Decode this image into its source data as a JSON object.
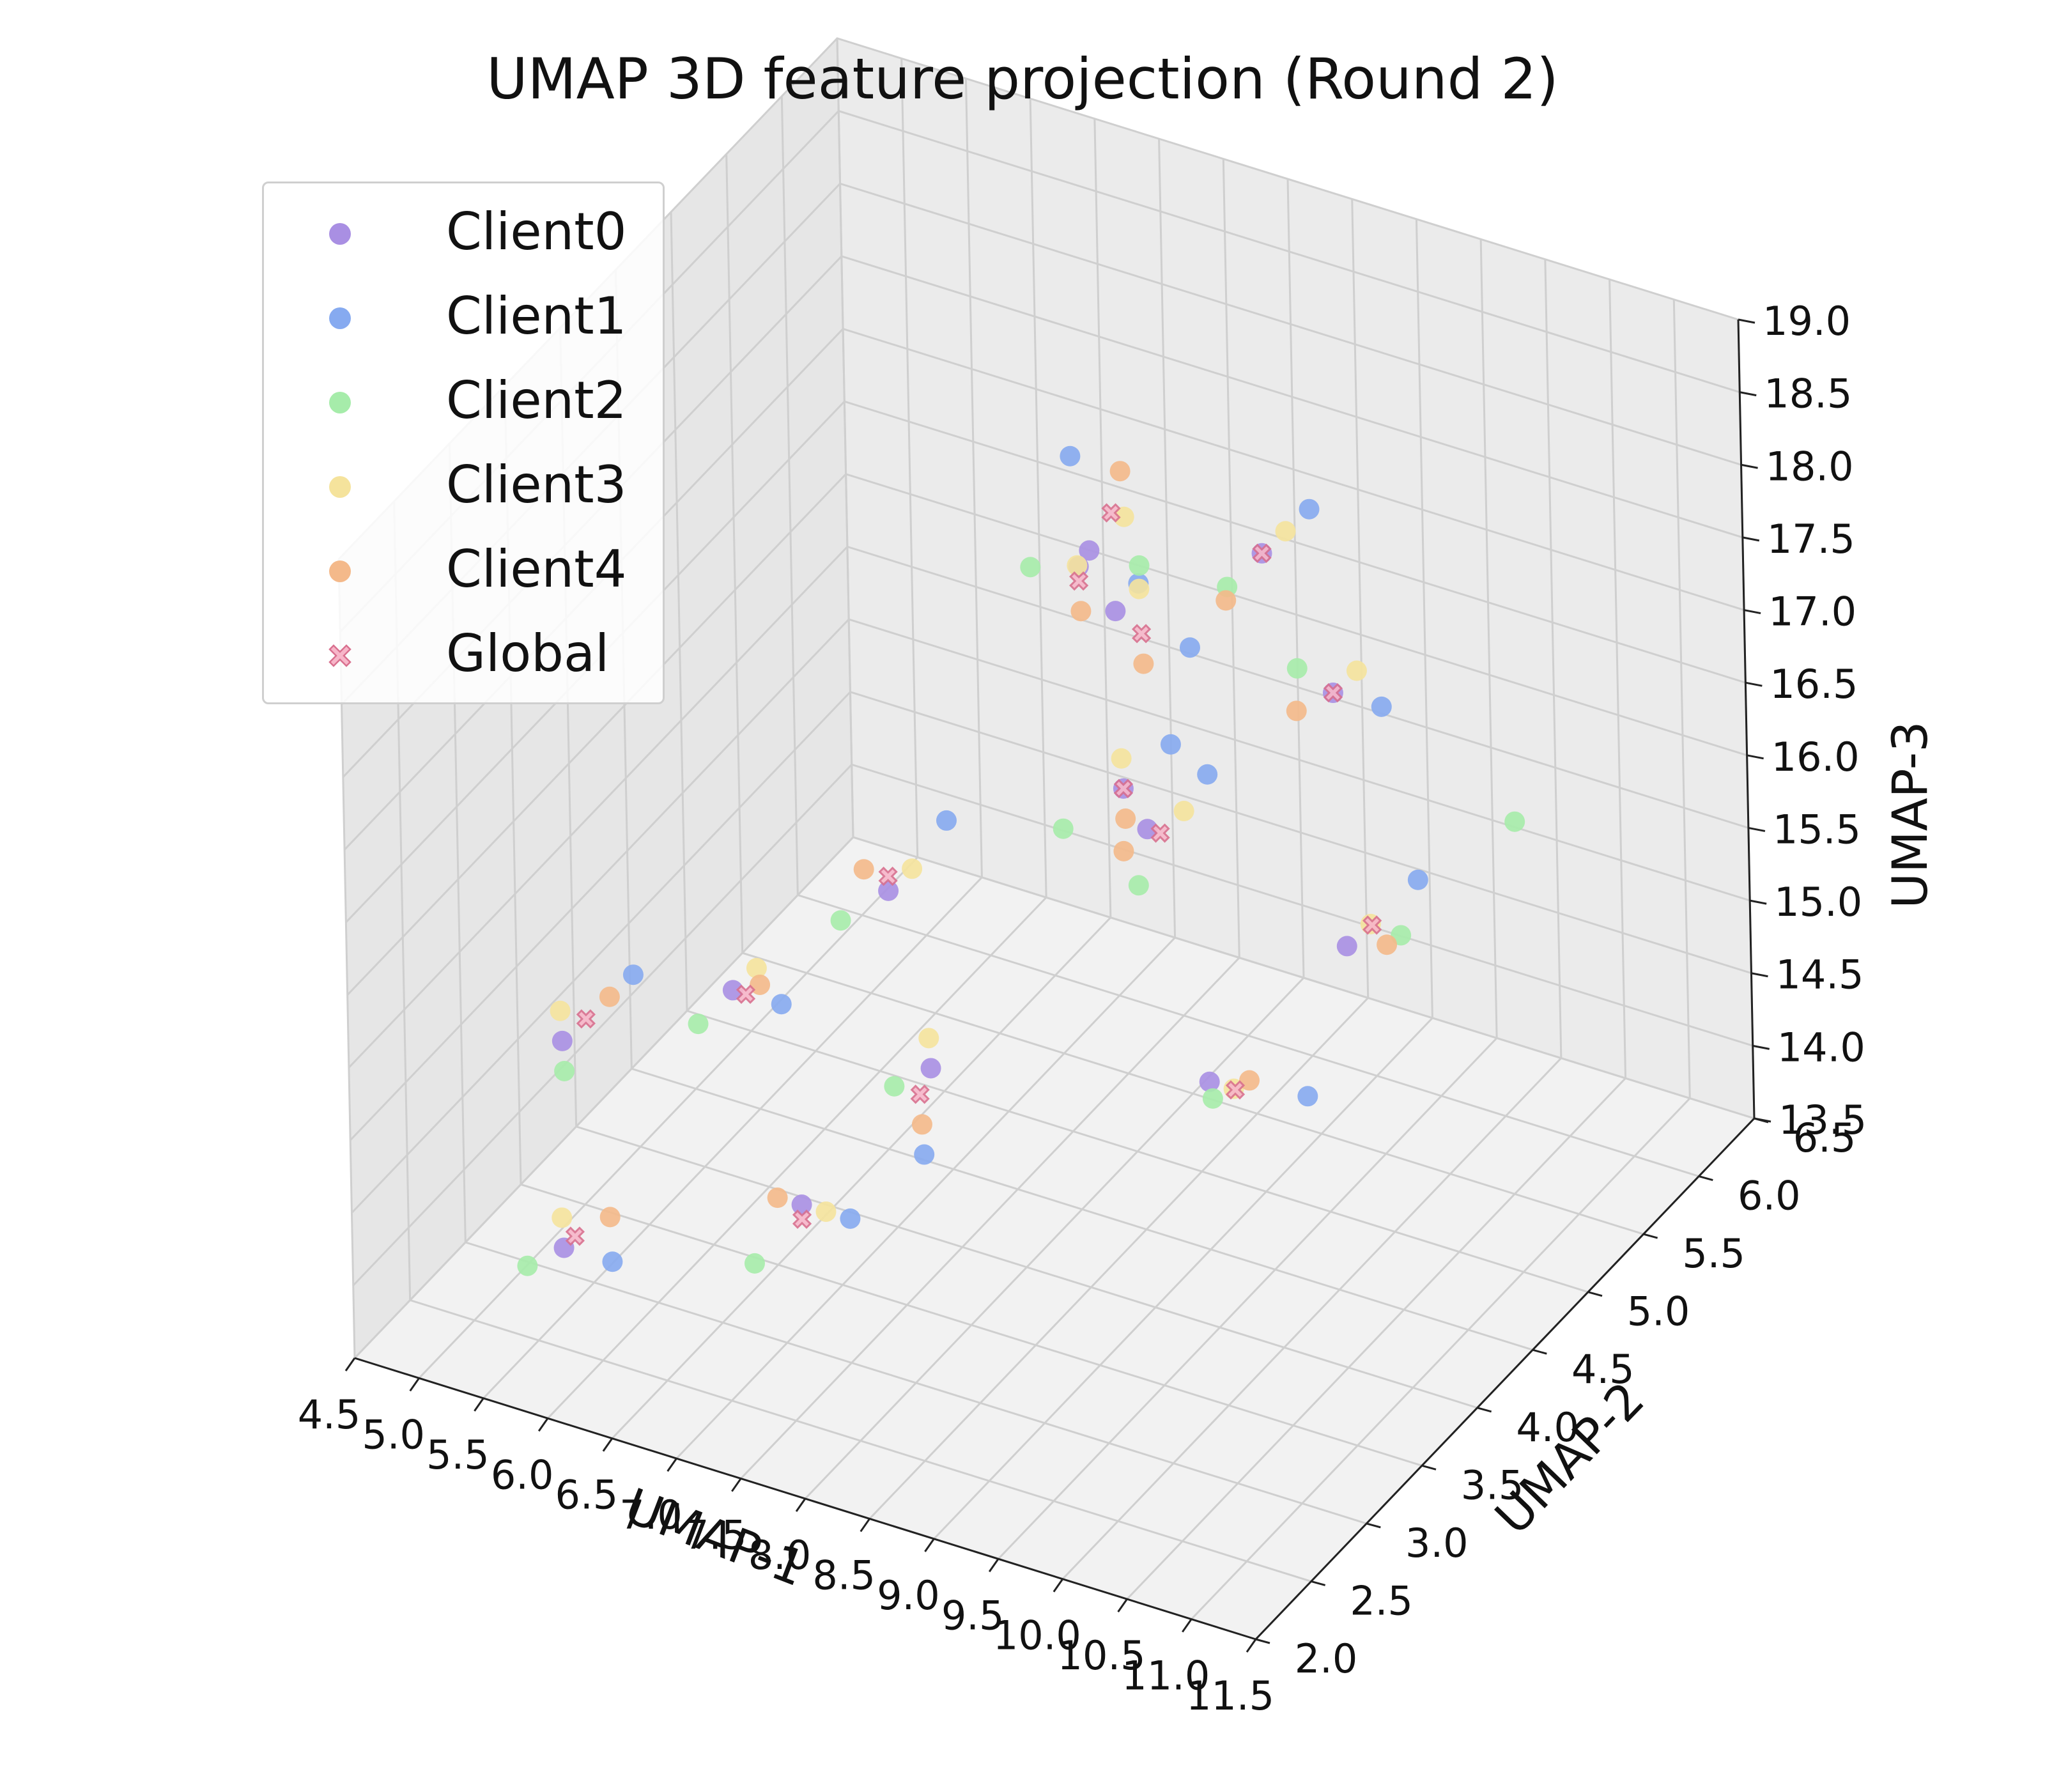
{
  "chart_data": {
    "type": "scatter",
    "projection": "3d",
    "title": "UMAP 3D feature projection (Round 2)",
    "xlabel": "UMAP-1",
    "ylabel": "UMAP-2",
    "zlabel": "UMAP-3",
    "xlim": [
      4.5,
      11.5
    ],
    "ylim": [
      2.0,
      6.5
    ],
    "zlim": [
      13.5,
      19.0
    ],
    "x_ticks": [
      "4.5",
      "5.0",
      "5.5",
      "6.0",
      "6.5",
      "7.0",
      "7.5",
      "8.0",
      "8.5",
      "9.0",
      "9.5",
      "10.0",
      "10.5",
      "11.0",
      "11.5"
    ],
    "y_ticks": [
      "2.0",
      "2.5",
      "3.0",
      "3.5",
      "4.0",
      "4.5",
      "5.0",
      "5.5",
      "6.0",
      "6.5"
    ],
    "z_ticks": [
      "13.5",
      "14.0",
      "14.5",
      "15.0",
      "15.5",
      "16.0",
      "16.5",
      "17.0",
      "17.5",
      "18.0",
      "18.5",
      "19.0"
    ],
    "grid": true,
    "legend_position": "top-left",
    "series": [
      {
        "name": "Client0",
        "color": "#a98fe3",
        "marker": "circle",
        "points": [
          [
            5.2,
            3.1,
            15.0
          ],
          [
            6.8,
            4.2,
            15.6
          ],
          [
            8.3,
            4.6,
            16.4
          ],
          [
            9.1,
            3.9,
            16.9
          ],
          [
            7.4,
            2.7,
            14.8
          ],
          [
            8.8,
            5.3,
            17.6
          ],
          [
            10.2,
            4.4,
            16.0
          ],
          [
            6.1,
            3.6,
            15.2
          ],
          [
            9.6,
            5.0,
            17.1
          ],
          [
            7.9,
            3.3,
            15.4
          ],
          [
            5.8,
            2.4,
            14.3
          ],
          [
            8.6,
            4.0,
            18.6
          ],
          [
            9.9,
            3.5,
            15.7
          ],
          [
            7.1,
            5.6,
            16.8
          ],
          [
            8.0,
            4.9,
            17.3
          ]
        ]
      },
      {
        "name": "Client1",
        "color": "#86aaf0",
        "marker": "circle",
        "points": [
          [
            5.5,
            3.4,
            15.3
          ],
          [
            7.0,
            4.5,
            15.9
          ],
          [
            8.5,
            4.8,
            16.6
          ],
          [
            9.4,
            4.1,
            17.2
          ],
          [
            7.6,
            2.9,
            14.6
          ],
          [
            9.0,
            5.5,
            17.8
          ],
          [
            10.5,
            4.7,
            16.3
          ],
          [
            6.3,
            3.8,
            15.0
          ],
          [
            9.8,
            5.2,
            16.9
          ],
          [
            8.1,
            3.0,
            15.1
          ],
          [
            6.0,
            2.6,
            14.1
          ],
          [
            8.2,
            4.3,
            18.9
          ],
          [
            10.4,
            3.8,
            15.5
          ],
          [
            7.3,
            5.9,
            16.5
          ],
          [
            8.4,
            5.1,
            17.0
          ]
        ]
      },
      {
        "name": "Client2",
        "color": "#a6ecaa",
        "marker": "circle",
        "points": [
          [
            5.3,
            3.0,
            14.9
          ],
          [
            6.6,
            4.0,
            15.5
          ],
          [
            8.0,
            4.4,
            16.2
          ],
          [
            9.2,
            3.7,
            16.7
          ],
          [
            7.2,
            2.5,
            14.5
          ],
          [
            8.7,
            5.1,
            17.5
          ],
          [
            10.8,
            4.2,
            16.4
          ],
          [
            6.0,
            3.4,
            15.1
          ],
          [
            9.5,
            4.8,
            17.4
          ],
          [
            7.7,
            3.2,
            15.3
          ],
          [
            5.6,
            2.3,
            14.2
          ],
          [
            8.9,
            4.1,
            18.5
          ],
          [
            10.1,
            3.3,
            15.8
          ],
          [
            6.9,
            5.4,
            16.9
          ],
          [
            11.0,
            5.0,
            16.6
          ]
        ]
      },
      {
        "name": "Client3",
        "color": "#f5e39c",
        "marker": "circle",
        "points": [
          [
            5.1,
            3.2,
            15.1
          ],
          [
            6.9,
            4.3,
            15.7
          ],
          [
            8.2,
            4.7,
            16.5
          ],
          [
            9.3,
            4.0,
            17.0
          ],
          [
            7.5,
            2.8,
            14.7
          ],
          [
            8.9,
            5.4,
            17.7
          ],
          [
            10.3,
            4.5,
            16.1
          ],
          [
            6.2,
            3.7,
            15.3
          ],
          [
            9.7,
            5.1,
            17.2
          ],
          [
            7.8,
            3.4,
            15.5
          ],
          [
            5.7,
            2.5,
            14.4
          ],
          [
            8.7,
            4.2,
            18.7
          ],
          [
            10.0,
            3.6,
            15.6
          ],
          [
            7.0,
            5.7,
            16.7
          ],
          [
            8.1,
            5.0,
            17.4
          ]
        ]
      },
      {
        "name": "Client4",
        "color": "#f4b98a",
        "marker": "circle",
        "points": [
          [
            5.4,
            3.3,
            15.2
          ],
          [
            6.7,
            4.1,
            15.8
          ],
          [
            8.4,
            4.5,
            16.3
          ],
          [
            9.0,
            3.8,
            16.8
          ],
          [
            7.3,
            2.6,
            14.9
          ],
          [
            8.6,
            5.2,
            17.3
          ],
          [
            10.6,
            4.3,
            16.2
          ],
          [
            6.4,
            3.5,
            15.4
          ],
          [
            9.4,
            4.9,
            17.0
          ],
          [
            8.0,
            3.1,
            15.2
          ],
          [
            5.9,
            2.7,
            14.3
          ],
          [
            8.5,
            4.4,
            18.8
          ],
          [
            10.3,
            3.4,
            15.9
          ],
          [
            7.2,
            5.5,
            16.6
          ],
          [
            8.3,
            4.8,
            17.1
          ]
        ]
      },
      {
        "name": "Global",
        "color": "#f7b6c9",
        "edge_color": "#d9708f",
        "marker": "x-filled",
        "points": [
          [
            5.3,
            3.2,
            15.1
          ],
          [
            6.8,
            4.2,
            15.7
          ],
          [
            8.3,
            4.6,
            16.4
          ],
          [
            9.2,
            3.9,
            16.9
          ],
          [
            7.4,
            2.7,
            14.7
          ],
          [
            8.8,
            5.3,
            17.6
          ],
          [
            10.4,
            4.4,
            16.2
          ],
          [
            6.2,
            3.6,
            15.2
          ],
          [
            9.6,
            5.0,
            17.1
          ],
          [
            7.9,
            3.2,
            15.3
          ],
          [
            5.8,
            2.5,
            14.3
          ],
          [
            8.6,
            4.2,
            18.7
          ],
          [
            10.1,
            3.5,
            15.7
          ],
          [
            7.1,
            5.6,
            16.7
          ],
          [
            8.2,
            4.9,
            17.2
          ]
        ]
      }
    ]
  }
}
